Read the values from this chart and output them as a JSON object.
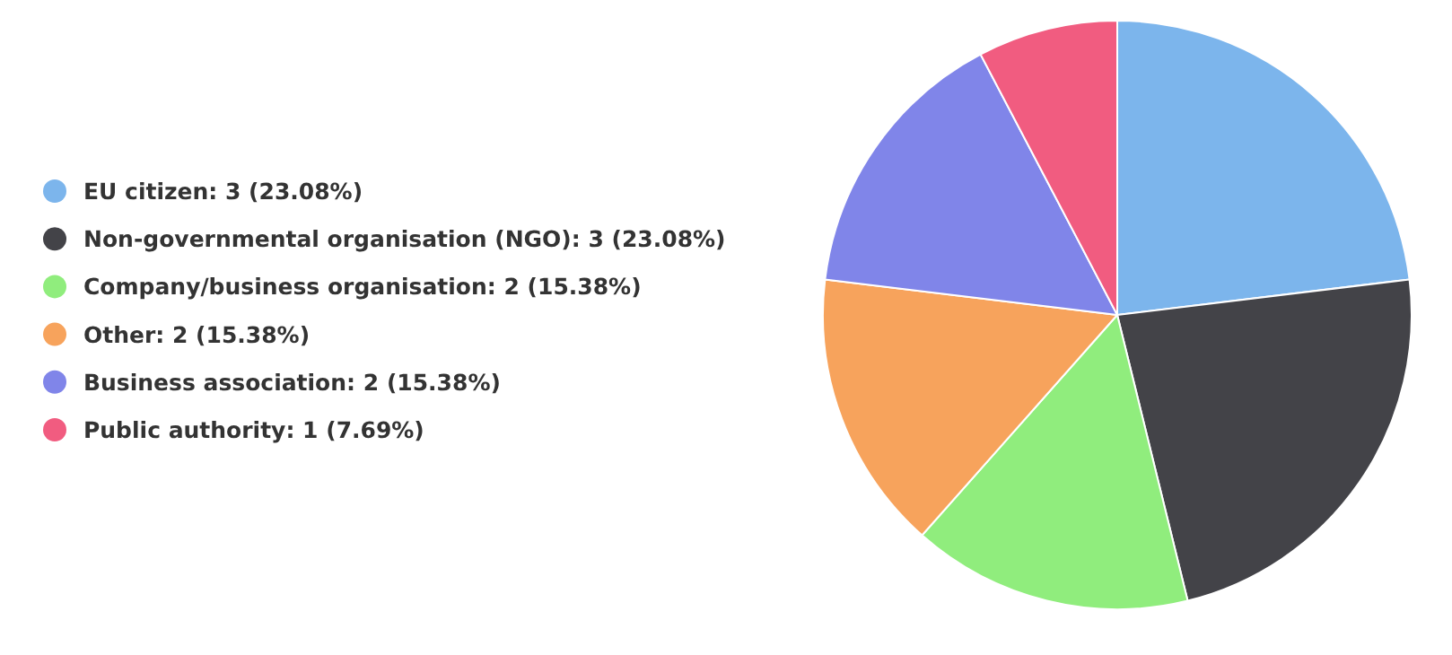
{
  "chart_data": {
    "type": "pie",
    "categories": [
      "EU citizen",
      "Non-governmental organisation (NGO)",
      "Company/business organisation",
      "Other",
      "Business association",
      "Public authority"
    ],
    "values": [
      3,
      3,
      2,
      2,
      2,
      1
    ],
    "value_labels": [
      "3 (23.08%)",
      "3 (23.08%)",
      "2 (15.38%)",
      "2 (15.38%)",
      "2 (15.38%)",
      "1 (7.69%)"
    ],
    "colors": [
      "#7cb5ec",
      "#434348",
      "#90ed7d",
      "#f7a35c",
      "#8085e9",
      "#f15c80"
    ],
    "legend": "left"
  }
}
